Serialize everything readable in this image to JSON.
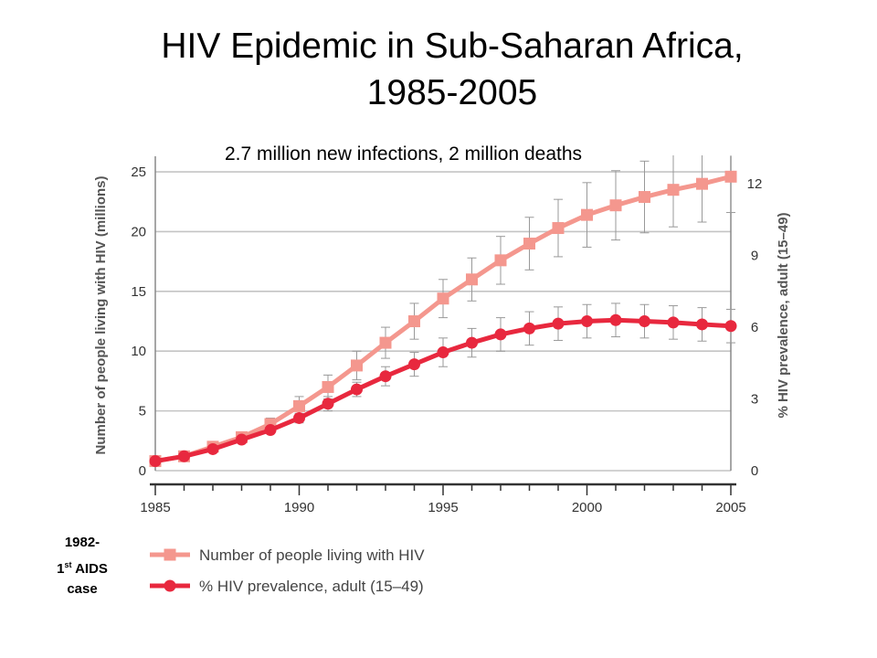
{
  "slide": {
    "title_line1": "HIV Epidemic in Sub-Saharan Africa,",
    "title_line2": "1985-2005",
    "subtitle": "2.7 million new infections, 2 million deaths",
    "note_line1": "1982-",
    "note_line2_a": "1",
    "note_line2_sup": "st",
    "note_line2_b": " AIDS",
    "note_line3": "case"
  },
  "chart_data": {
    "type": "line",
    "title": "",
    "xlabel": "",
    "ylabel": "Number of people living with HIV (millions)",
    "ylabel2": "% HIV prevalence, adult (15–49)",
    "x": [
      1985,
      1986,
      1987,
      1988,
      1989,
      1990,
      1991,
      1992,
      1993,
      1994,
      1995,
      1996,
      1997,
      1998,
      1999,
      2000,
      2001,
      2002,
      2003,
      2004,
      2005
    ],
    "xticks": [
      1985,
      1990,
      1995,
      2000,
      2005
    ],
    "xlim": [
      1985,
      2005
    ],
    "ylim": [
      0,
      26
    ],
    "yticks": [
      0,
      5,
      10,
      15,
      20,
      25
    ],
    "ylim2": [
      0,
      13
    ],
    "yticks2": [
      0,
      3,
      6,
      9,
      12
    ],
    "grid": true,
    "legend_position": "bottom-left",
    "series": [
      {
        "name": "Number of people living with HIV",
        "axis": "left",
        "marker": "square",
        "color": "#f4978e",
        "values": [
          0.8,
          1.2,
          2.0,
          2.8,
          3.9,
          5.4,
          7.0,
          8.8,
          10.7,
          12.5,
          14.4,
          16.0,
          17.6,
          19.0,
          20.3,
          21.4,
          22.2,
          22.9,
          23.5,
          24.0,
          24.6
        ],
        "err": [
          0,
          0,
          0,
          0,
          0.5,
          0.8,
          1.0,
          1.2,
          1.3,
          1.5,
          1.6,
          1.8,
          2.0,
          2.2,
          2.4,
          2.7,
          2.9,
          3.0,
          3.1,
          3.2,
          3.0
        ]
      },
      {
        "name": "% HIV prevalence, adult (15–49)",
        "axis": "right",
        "marker": "circle",
        "color": "#e8283e",
        "values": [
          0.4,
          0.6,
          0.9,
          1.3,
          1.7,
          2.2,
          2.8,
          3.4,
          3.95,
          4.45,
          4.95,
          5.35,
          5.7,
          5.95,
          6.15,
          6.25,
          6.3,
          6.25,
          6.2,
          6.12,
          6.05
        ],
        "err": [
          0,
          0,
          0,
          0,
          0,
          0.2,
          0.3,
          0.3,
          0.4,
          0.5,
          0.6,
          0.6,
          0.7,
          0.7,
          0.7,
          0.7,
          0.7,
          0.7,
          0.7,
          0.7,
          0.7
        ]
      }
    ]
  }
}
